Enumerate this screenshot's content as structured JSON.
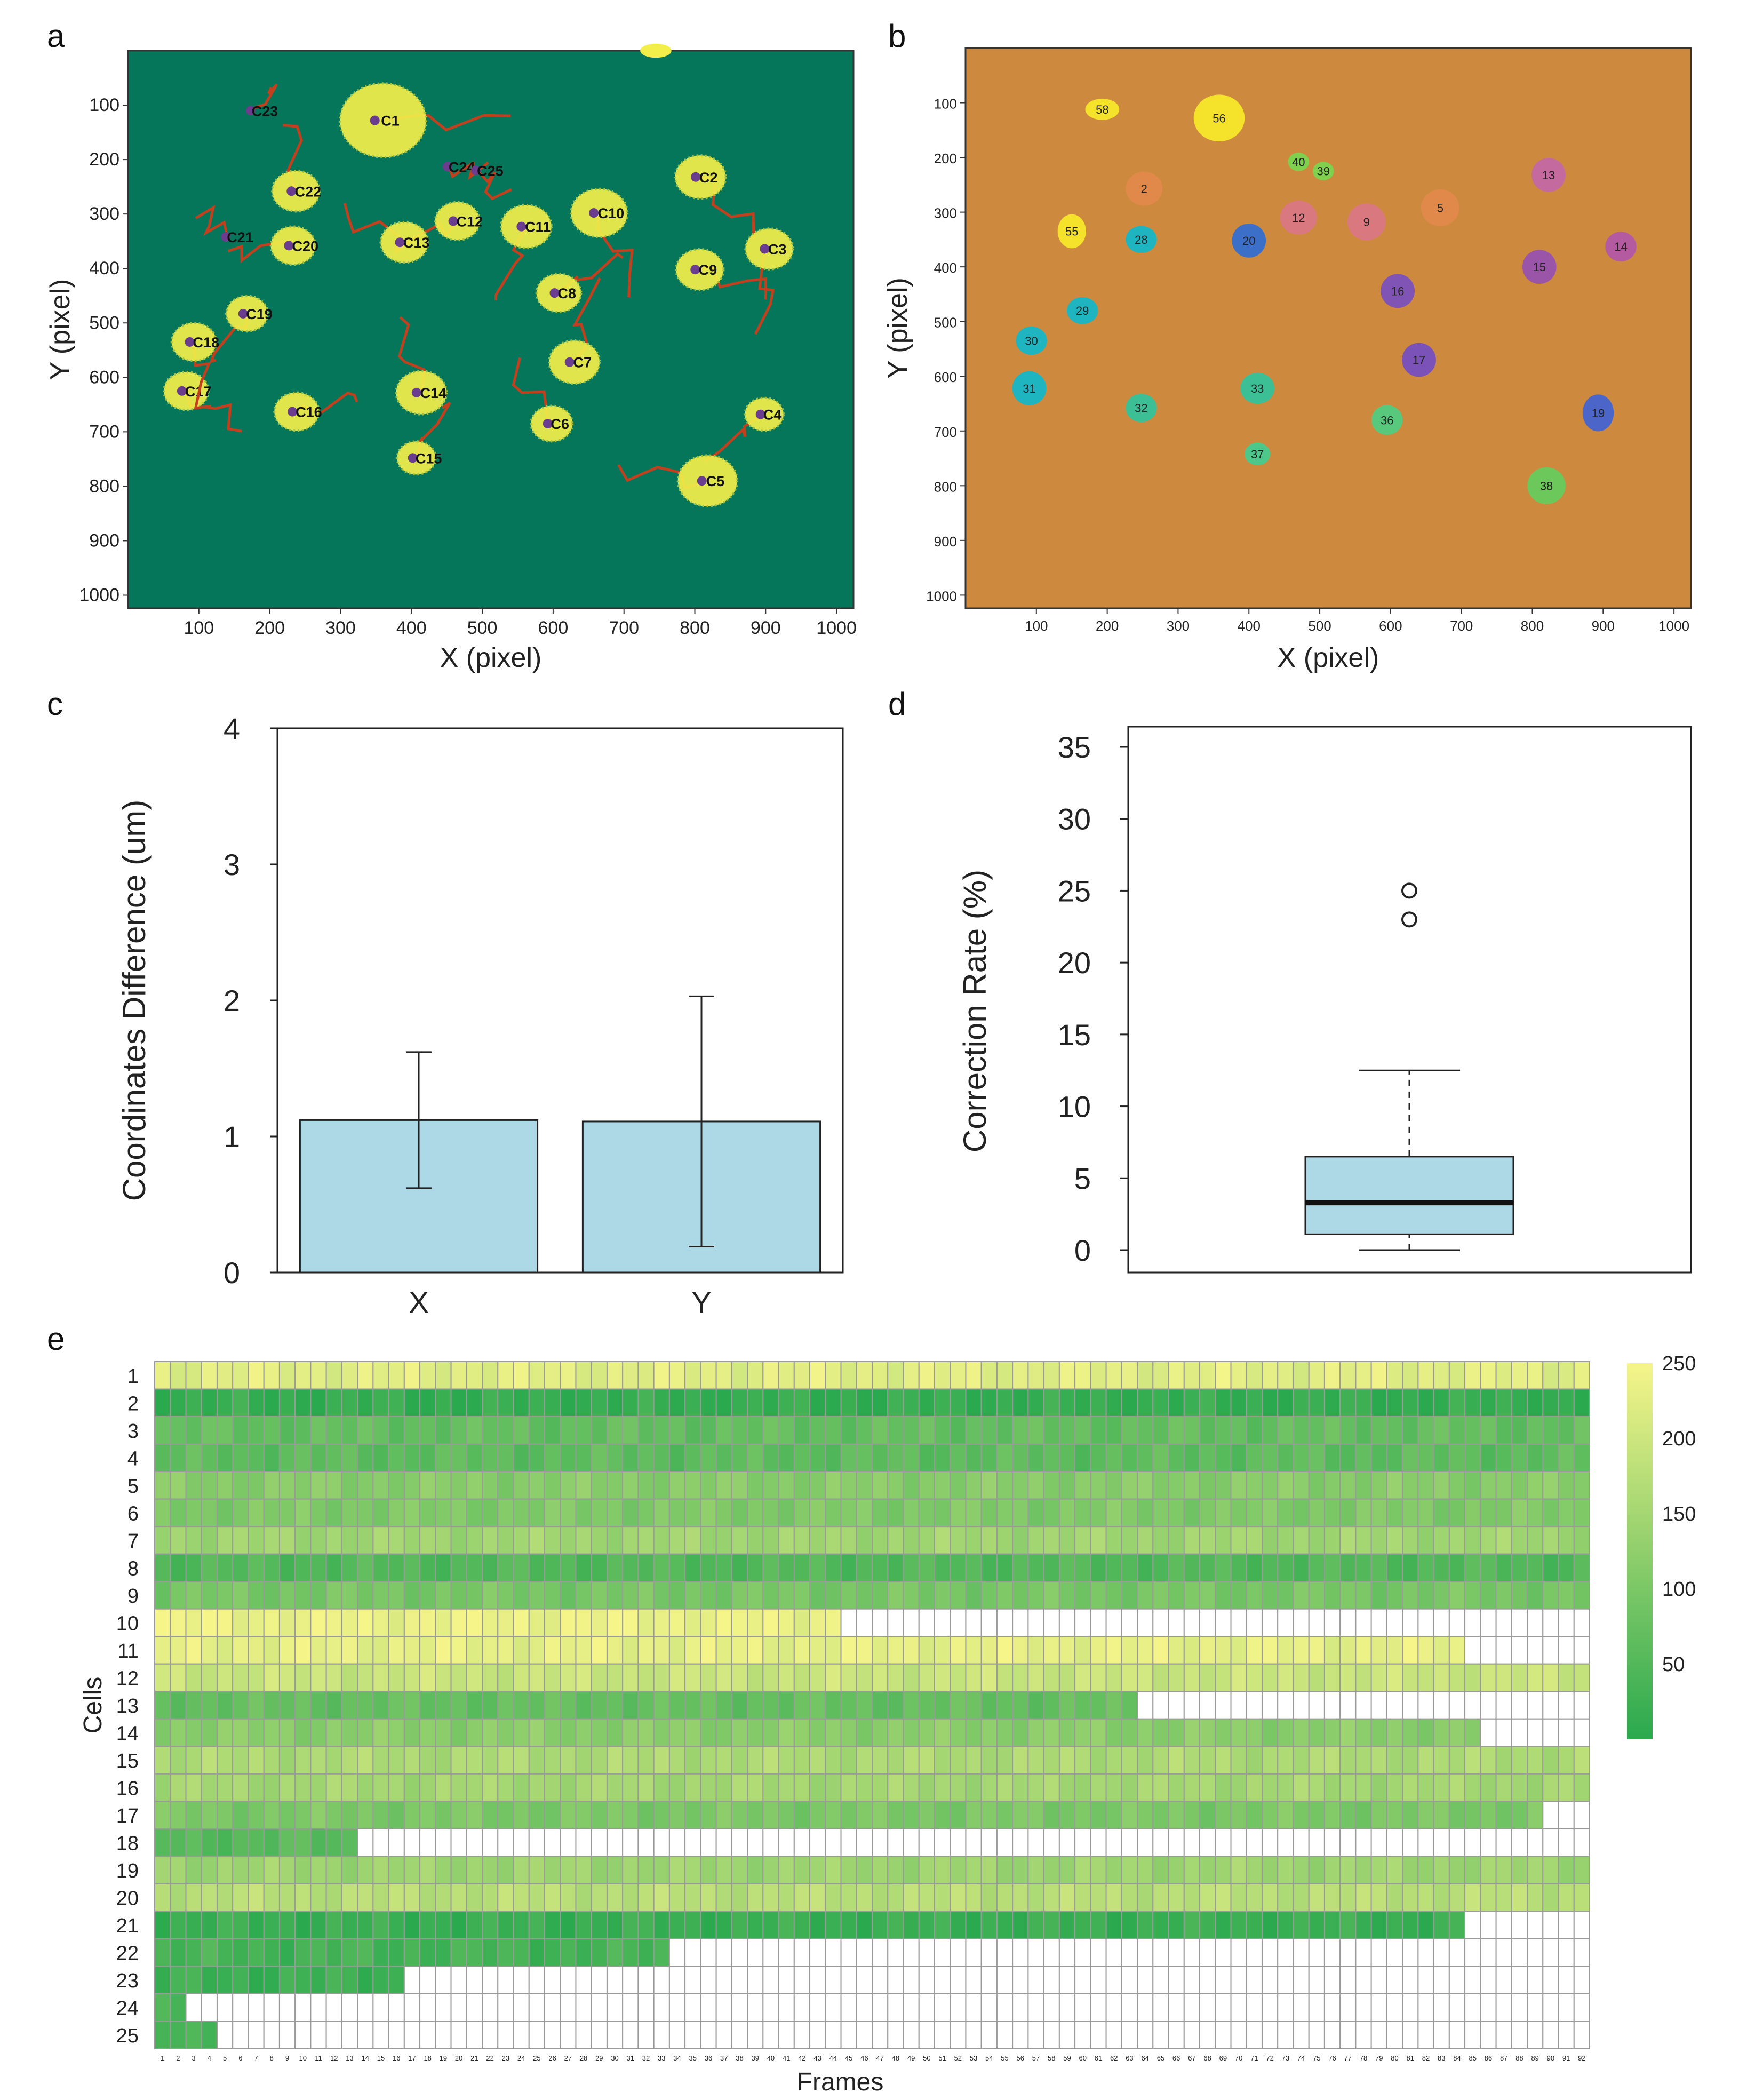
{
  "panels": {
    "a": "a",
    "b": "b",
    "c": "c",
    "d": "d",
    "e": "e"
  },
  "chart_data": [
    {
      "panel": "a",
      "type": "scatter",
      "title": "",
      "xlabel": "X (pixel)",
      "ylabel": "Y (pixel)",
      "xlim": [
        0,
        1024
      ],
      "ylim": [
        1024,
        0
      ],
      "xticks": [
        "100",
        "200",
        "300",
        "400",
        "500",
        "600",
        "700",
        "800",
        "900",
        "1000"
      ],
      "yticks": [
        "100",
        "200",
        "300",
        "400",
        "500",
        "600",
        "700",
        "800",
        "900",
        "1000"
      ],
      "colors": {
        "background": "#05765a",
        "cell": "#f2ef4a",
        "track": "#c2401e",
        "marker": "#6a3d8f"
      },
      "cells": [
        {
          "id": "C1",
          "x": 360,
          "y": 128,
          "r": 58
        },
        {
          "id": "C2",
          "x": 808,
          "y": 232,
          "r": 34
        },
        {
          "id": "C3",
          "x": 905,
          "y": 364,
          "r": 32
        },
        {
          "id": "C4",
          "x": 898,
          "y": 668,
          "r": 26
        },
        {
          "id": "C5",
          "x": 818,
          "y": 790,
          "r": 40
        },
        {
          "id": "C6",
          "x": 598,
          "y": 685,
          "r": 28
        },
        {
          "id": "C7",
          "x": 630,
          "y": 572,
          "r": 34
        },
        {
          "id": "C8",
          "x": 608,
          "y": 445,
          "r": 30
        },
        {
          "id": "C9",
          "x": 807,
          "y": 402,
          "r": 32
        },
        {
          "id": "C10",
          "x": 665,
          "y": 298,
          "r": 38
        },
        {
          "id": "C11",
          "x": 562,
          "y": 323,
          "r": 34
        },
        {
          "id": "C12",
          "x": 465,
          "y": 313,
          "r": 30
        },
        {
          "id": "C13",
          "x": 390,
          "y": 352,
          "r": 32
        },
        {
          "id": "C14",
          "x": 414,
          "y": 628,
          "r": 34
        },
        {
          "id": "C15",
          "x": 407,
          "y": 748,
          "r": 26
        },
        {
          "id": "C16",
          "x": 238,
          "y": 663,
          "r": 30
        },
        {
          "id": "C17",
          "x": 82,
          "y": 625,
          "r": 30
        },
        {
          "id": "C18",
          "x": 93,
          "y": 535,
          "r": 30
        },
        {
          "id": "C19",
          "x": 168,
          "y": 483,
          "r": 28
        },
        {
          "id": "C20",
          "x": 233,
          "y": 358,
          "r": 30
        },
        {
          "id": "C21",
          "x": 140,
          "y": 342,
          "r": 10
        },
        {
          "id": "C22",
          "x": 237,
          "y": 258,
          "r": 32
        },
        {
          "id": "C23",
          "x": 175,
          "y": 110,
          "r": 10
        },
        {
          "id": "C24",
          "x": 453,
          "y": 213,
          "r": 10
        },
        {
          "id": "C25",
          "x": 493,
          "y": 220,
          "r": 10
        }
      ]
    },
    {
      "panel": "b",
      "type": "scatter",
      "title": "",
      "xlabel": "X (pixel)",
      "ylabel": "Y (pixel)",
      "xlim": [
        0,
        1024
      ],
      "ylim": [
        1024,
        0
      ],
      "xticks": [
        "100",
        "200",
        "300",
        "400",
        "500",
        "600",
        "700",
        "800",
        "900",
        "1000"
      ],
      "yticks": [
        "100",
        "200",
        "300",
        "400",
        "500",
        "600",
        "700",
        "800",
        "900",
        "1000"
      ],
      "colors": {
        "background": "#cd8a3e"
      },
      "blobs": [
        {
          "id": "58",
          "x": 193,
          "y": 112,
          "rx": 24,
          "ry": 15,
          "color": "#f4e22b"
        },
        {
          "id": "56",
          "x": 358,
          "y": 128,
          "rx": 36,
          "ry": 33,
          "color": "#f4e22b"
        },
        {
          "id": "40",
          "x": 470,
          "y": 208,
          "rx": 15,
          "ry": 13,
          "color": "#7fd04c"
        },
        {
          "id": "39",
          "x": 505,
          "y": 225,
          "rx": 15,
          "ry": 13,
          "color": "#7fd04c"
        },
        {
          "id": "2",
          "x": 252,
          "y": 257,
          "rx": 26,
          "ry": 24,
          "color": "#e0894a"
        },
        {
          "id": "13",
          "x": 823,
          "y": 232,
          "rx": 24,
          "ry": 24,
          "color": "#c46a9e"
        },
        {
          "id": "5",
          "x": 670,
          "y": 292,
          "rx": 27,
          "ry": 26,
          "color": "#e0894a"
        },
        {
          "id": "12",
          "x": 470,
          "y": 310,
          "rx": 26,
          "ry": 24,
          "color": "#d9797f"
        },
        {
          "id": "9",
          "x": 566,
          "y": 318,
          "rx": 27,
          "ry": 26,
          "color": "#d9797f"
        },
        {
          "id": "55",
          "x": 150,
          "y": 335,
          "rx": 20,
          "ry": 24,
          "color": "#f4e22b"
        },
        {
          "id": "28",
          "x": 248,
          "y": 350,
          "rx": 22,
          "ry": 19,
          "color": "#1eb4c0"
        },
        {
          "id": "20",
          "x": 400,
          "y": 352,
          "rx": 24,
          "ry": 24,
          "color": "#3c70c8"
        },
        {
          "id": "14",
          "x": 925,
          "y": 363,
          "rx": 22,
          "ry": 21,
          "color": "#b45aa0"
        },
        {
          "id": "15",
          "x": 810,
          "y": 400,
          "rx": 24,
          "ry": 24,
          "color": "#9a55a8"
        },
        {
          "id": "16",
          "x": 610,
          "y": 444,
          "rx": 24,
          "ry": 24,
          "color": "#8054b4"
        },
        {
          "id": "29",
          "x": 165,
          "y": 480,
          "rx": 22,
          "ry": 19,
          "color": "#1eb4c0"
        },
        {
          "id": "30",
          "x": 93,
          "y": 535,
          "rx": 22,
          "ry": 20,
          "color": "#1eb4c0"
        },
        {
          "id": "17",
          "x": 640,
          "y": 570,
          "rx": 24,
          "ry": 24,
          "color": "#7a52b8"
        },
        {
          "id": "31",
          "x": 90,
          "y": 622,
          "rx": 24,
          "ry": 24,
          "color": "#1eb4c0"
        },
        {
          "id": "33",
          "x": 412,
          "y": 622,
          "rx": 24,
          "ry": 22,
          "color": "#3dbf96"
        },
        {
          "id": "32",
          "x": 248,
          "y": 658,
          "rx": 22,
          "ry": 20,
          "color": "#3dbf96"
        },
        {
          "id": "19",
          "x": 893,
          "y": 667,
          "rx": 22,
          "ry": 26,
          "color": "#4b66c8"
        },
        {
          "id": "36",
          "x": 595,
          "y": 680,
          "rx": 22,
          "ry": 21,
          "color": "#58c87c"
        },
        {
          "id": "37",
          "x": 412,
          "y": 742,
          "rx": 18,
          "ry": 16,
          "color": "#4ec88a"
        },
        {
          "id": "38",
          "x": 820,
          "y": 800,
          "rx": 27,
          "ry": 26,
          "color": "#6cc85a"
        }
      ]
    },
    {
      "panel": "c",
      "type": "bar",
      "title": "",
      "categories": [
        "X",
        "Y"
      ],
      "values": [
        1.12,
        1.11
      ],
      "errors": [
        [
          0.62,
          1.62
        ],
        [
          0.19,
          2.03
        ]
      ],
      "xlabel": "",
      "ylabel": "Coordinates Difference (um)",
      "ylim": [
        0,
        4
      ],
      "yticks": [
        "0",
        "1",
        "2",
        "3",
        "4"
      ],
      "colors": {
        "bar": "#add8e6"
      }
    },
    {
      "panel": "d",
      "type": "box",
      "title": "",
      "xlabel": "",
      "ylabel": "Correction Rate (%)",
      "ylim": [
        0,
        35
      ],
      "yticks": [
        "0",
        "5",
        "10",
        "15",
        "20",
        "25",
        "30",
        "35"
      ],
      "box": {
        "min": 0,
        "q1": 1.1,
        "median": 3.3,
        "q3": 6.5,
        "max": 12.5
      },
      "outliers": [
        23,
        25
      ],
      "colors": {
        "box": "#add8e6"
      }
    },
    {
      "panel": "e",
      "type": "heatmap",
      "title": "",
      "xlabel": "Frames",
      "ylabel": "Cells",
      "n_frames": 92,
      "colorbar": {
        "min": 0,
        "max": 250,
        "ticks": [
          "50",
          "100",
          "150",
          "200",
          "250"
        ],
        "low_color": "#2aa94e",
        "high_color": "#f6f58a"
      },
      "rows": [
        {
          "cell": "1",
          "level": 225,
          "frames": 92
        },
        {
          "cell": "2",
          "level": 12,
          "frames": 92
        },
        {
          "cell": "3",
          "level": 70,
          "frames": 92
        },
        {
          "cell": "4",
          "level": 62,
          "frames": 92
        },
        {
          "cell": "5",
          "level": 115,
          "frames": 92
        },
        {
          "cell": "6",
          "level": 105,
          "frames": 92
        },
        {
          "cell": "7",
          "level": 145,
          "frames": 92
        },
        {
          "cell": "8",
          "level": 48,
          "frames": 92
        },
        {
          "cell": "9",
          "level": 95,
          "frames": 92
        },
        {
          "cell": "10",
          "level": 238,
          "frames": 44
        },
        {
          "cell": "11",
          "level": 230,
          "frames": 84
        },
        {
          "cell": "12",
          "level": 195,
          "frames": 92
        },
        {
          "cell": "13",
          "level": 72,
          "frames": 63
        },
        {
          "cell": "14",
          "level": 118,
          "frames": 85
        },
        {
          "cell": "15",
          "level": 160,
          "frames": 92
        },
        {
          "cell": "16",
          "level": 150,
          "frames": 92
        },
        {
          "cell": "17",
          "level": 100,
          "frames": 89
        },
        {
          "cell": "18",
          "level": 55,
          "frames": 13
        },
        {
          "cell": "19",
          "level": 142,
          "frames": 92
        },
        {
          "cell": "20",
          "level": 175,
          "frames": 92
        },
        {
          "cell": "21",
          "level": 18,
          "frames": 84
        },
        {
          "cell": "22",
          "level": 32,
          "frames": 33
        },
        {
          "cell": "23",
          "level": 22,
          "frames": 16
        },
        {
          "cell": "24",
          "level": 28,
          "frames": 2
        },
        {
          "cell": "25",
          "level": 40,
          "frames": 4
        }
      ]
    }
  ]
}
